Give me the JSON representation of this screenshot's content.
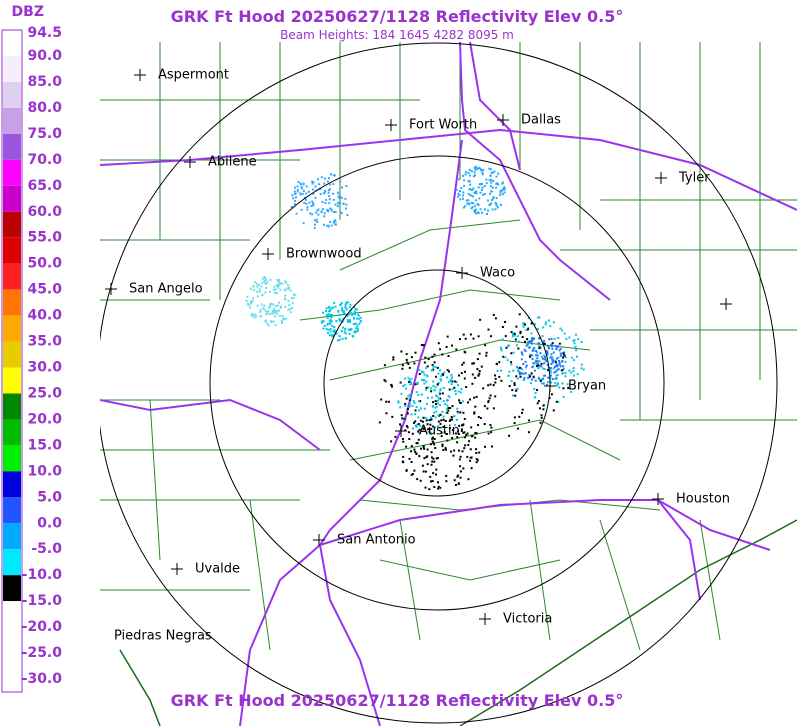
{
  "header": {
    "title": "GRK Ft Hood 20250627/1128 Reflectivity Elev 0.5°",
    "subtitle": "Beam Heights: 184 1645 4282 8095 m"
  },
  "legend": {
    "unit": "DBZ",
    "labels": [
      "94.5",
      "90.0",
      "85.0",
      "80.0",
      "75.0",
      "70.0",
      "65.0",
      "60.0",
      "55.0",
      "50.0",
      "45.0",
      "40.0",
      "35.0",
      "30.0",
      "25.0",
      "20.0",
      "15.0",
      "10.0",
      "5.0",
      "0.0",
      "-5.0",
      "-10.0",
      "-15.0",
      "-20.0",
      "-25.0",
      "-30.0"
    ]
  },
  "cities": [
    "Aspermont",
    "Fort Worth",
    "Dallas",
    "Abilene",
    "Tyler",
    "Brownwood",
    "Waco",
    "San Angelo",
    "Bryan",
    "Austin",
    "Houston",
    "San Antonio",
    "Uvalde",
    "Victoria",
    "Piedras Negras"
  ]
}
